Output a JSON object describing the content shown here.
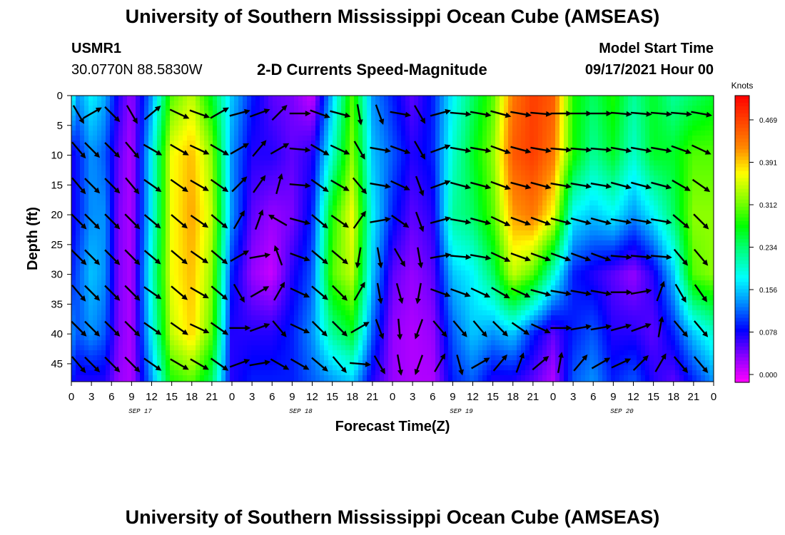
{
  "header": {
    "title": "University of Southern Mississippi Ocean Cube (AMSEAS)",
    "station_id": "USMR1",
    "coordinates": "30.0770N  88.5830W",
    "model_start_label": "Model Start Time",
    "model_start_value": "09/17/2021 Hour 00"
  },
  "footer": {
    "title": "University of Southern Mississippi Ocean Cube (AMSEAS)"
  },
  "chart_data": {
    "type": "heatmap",
    "title": "2-D Currents Speed-Magnitude",
    "xlabel": "Forecast Time(Z)",
    "ylabel": "Depth (ft)",
    "x_tick_labels": [
      "0",
      "3",
      "6",
      "9",
      "12",
      "15",
      "18",
      "21",
      "0",
      "3",
      "6",
      "9",
      "12",
      "15",
      "18",
      "21",
      "0",
      "3",
      "6",
      "9",
      "12",
      "15",
      "18",
      "21",
      "0",
      "3",
      "6",
      "9",
      "12",
      "15",
      "18",
      "21",
      "0"
    ],
    "date_labels": [
      "SEP 17",
      "SEP 18",
      "SEP 19",
      "SEP 20"
    ],
    "xlim_hours": [
      0,
      96
    ],
    "y_ticks": [
      0,
      5,
      10,
      15,
      20,
      25,
      30,
      35,
      40,
      45
    ],
    "ylim": [
      0,
      48
    ],
    "y_inverted": true,
    "colorbar": {
      "unit": "Knots",
      "ticks": [
        "0.469",
        "0.391",
        "0.312",
        "0.234",
        "0.156",
        "0.078",
        "0.000"
      ],
      "range": [
        0.0,
        0.5
      ],
      "colors": [
        "#ff00ff",
        "#8800ff",
        "#0000ff",
        "#0088ff",
        "#00ffff",
        "#00ff88",
        "#00ff00",
        "#88ff00",
        "#ffff00",
        "#ff8800",
        "#ff4400",
        "#ff0000"
      ]
    },
    "speed_columns": {
      "hours": [
        0,
        1,
        3,
        5,
        7,
        9,
        12,
        15,
        18,
        21,
        24,
        27,
        30,
        33,
        36,
        39,
        42,
        45,
        48,
        51,
        54,
        57,
        60,
        63,
        66,
        69,
        72,
        75,
        78,
        81,
        84,
        87,
        90,
        93,
        96
      ],
      "depth_rows": [
        0,
        10,
        20,
        30,
        40,
        48
      ],
      "values": [
        [
          0.2,
          0.08,
          0.08,
          0.1,
          0.14,
          0.1
        ],
        [
          0.14,
          0.1,
          0.1,
          0.12,
          0.12,
          0.08
        ],
        [
          0.18,
          0.14,
          0.14,
          0.16,
          0.14,
          0.08
        ],
        [
          0.15,
          0.12,
          0.14,
          0.14,
          0.12,
          0.08
        ],
        [
          0.08,
          0.06,
          0.05,
          0.05,
          0.05,
          0.04
        ],
        [
          0.04,
          0.03,
          0.03,
          0.03,
          0.03,
          0.03
        ],
        [
          0.14,
          0.18,
          0.18,
          0.2,
          0.18,
          0.14
        ],
        [
          0.3,
          0.36,
          0.36,
          0.36,
          0.34,
          0.28
        ],
        [
          0.34,
          0.39,
          0.4,
          0.39,
          0.38,
          0.3
        ],
        [
          0.26,
          0.32,
          0.34,
          0.32,
          0.3,
          0.24
        ],
        [
          0.16,
          0.14,
          0.14,
          0.1,
          0.08,
          0.08
        ],
        [
          0.1,
          0.08,
          0.06,
          0.04,
          0.08,
          0.1
        ],
        [
          0.06,
          0.08,
          0.04,
          0.02,
          0.08,
          0.1
        ],
        [
          0.05,
          0.06,
          0.05,
          0.08,
          0.1,
          0.1
        ],
        [
          0.02,
          0.08,
          0.1,
          0.12,
          0.14,
          0.12
        ],
        [
          0.16,
          0.2,
          0.28,
          0.3,
          0.22,
          0.14
        ],
        [
          0.3,
          0.32,
          0.36,
          0.34,
          0.26,
          0.16
        ],
        [
          0.14,
          0.16,
          0.18,
          0.16,
          0.12,
          0.08
        ],
        [
          0.1,
          0.12,
          0.1,
          0.06,
          0.04,
          0.04
        ],
        [
          0.06,
          0.08,
          0.06,
          0.04,
          0.03,
          0.03
        ],
        [
          0.1,
          0.1,
          0.08,
          0.06,
          0.04,
          0.03
        ],
        [
          0.18,
          0.2,
          0.22,
          0.16,
          0.12,
          0.1
        ],
        [
          0.24,
          0.26,
          0.24,
          0.18,
          0.16,
          0.12
        ],
        [
          0.3,
          0.32,
          0.3,
          0.24,
          0.14,
          0.08
        ],
        [
          0.42,
          0.44,
          0.4,
          0.34,
          0.16,
          0.08
        ],
        [
          0.46,
          0.46,
          0.42,
          0.3,
          0.1,
          0.06
        ],
        [
          0.44,
          0.42,
          0.36,
          0.2,
          0.06,
          0.03
        ],
        [
          0.28,
          0.28,
          0.18,
          0.1,
          0.1,
          0.12
        ],
        [
          0.24,
          0.22,
          0.16,
          0.08,
          0.12,
          0.14
        ],
        [
          0.28,
          0.26,
          0.18,
          0.06,
          0.08,
          0.1
        ],
        [
          0.22,
          0.2,
          0.14,
          0.04,
          0.08,
          0.12
        ],
        [
          0.26,
          0.26,
          0.18,
          0.08,
          0.06,
          0.08
        ],
        [
          0.22,
          0.26,
          0.24,
          0.16,
          0.1,
          0.06
        ],
        [
          0.24,
          0.3,
          0.32,
          0.3,
          0.16,
          0.1
        ],
        [
          0.26,
          0.3,
          0.32,
          0.32,
          0.2,
          0.14
        ]
      ]
    },
    "vector_columns": {
      "hours": [
        1,
        3,
        6,
        9,
        12,
        16,
        19,
        22,
        25,
        28,
        31,
        34,
        37,
        40,
        43,
        46,
        49,
        52,
        55,
        58,
        61,
        64,
        67,
        70,
        73,
        76,
        79,
        82,
        85,
        88,
        91,
        94
      ],
      "depths_ft": [
        3,
        9,
        15,
        21,
        27,
        33,
        39,
        45
      ],
      "directions_deg": [
        [
          150,
          140,
          140,
          135,
          135,
          140,
          135,
          140
        ],
        [
          60,
          135,
          135,
          135,
          135,
          135,
          135,
          135
        ],
        [
          135,
          135,
          135,
          135,
          135,
          135,
          135,
          135
        ],
        [
          150,
          140,
          140,
          135,
          135,
          135,
          135,
          135
        ],
        [
          50,
          120,
          125,
          130,
          130,
          125,
          125,
          125
        ],
        [
          115,
          120,
          125,
          130,
          130,
          130,
          125,
          120
        ],
        [
          110,
          115,
          120,
          125,
          125,
          120,
          115,
          120
        ],
        [
          60,
          120,
          125,
          130,
          130,
          130,
          125,
          125
        ],
        [
          75,
          60,
          45,
          30,
          60,
          150,
          90,
          70
        ],
        [
          70,
          40,
          35,
          20,
          80,
          60,
          70,
          80
        ],
        [
          45,
          60,
          15,
          300,
          340,
          30,
          140,
          120
        ],
        [
          90,
          95,
          95,
          105,
          110,
          115,
          115,
          120
        ],
        [
          110,
          120,
          125,
          130,
          130,
          130,
          135,
          130
        ],
        [
          105,
          115,
          120,
          125,
          130,
          135,
          135,
          140
        ],
        [
          170,
          150,
          140,
          35,
          190,
          30,
          60,
          95
        ],
        [
          160,
          100,
          100,
          80,
          170,
          170,
          160,
          150
        ],
        [
          100,
          110,
          115,
          125,
          150,
          165,
          175,
          170
        ],
        [
          150,
          150,
          160,
          160,
          170,
          190,
          200,
          200
        ],
        [
          75,
          70,
          70,
          75,
          80,
          110,
          140,
          30
        ],
        [
          95,
          100,
          105,
          100,
          95,
          110,
          140,
          165
        ],
        [
          100,
          100,
          105,
          105,
          100,
          115,
          140,
          60
        ],
        [
          105,
          110,
          110,
          115,
          115,
          120,
          135,
          40
        ],
        [
          100,
          105,
          105,
          110,
          110,
          115,
          125,
          20
        ],
        [
          95,
          100,
          105,
          110,
          110,
          105,
          115,
          50
        ],
        [
          90,
          95,
          100,
          105,
          110,
          100,
          90,
          10
        ],
        [
          90,
          95,
          100,
          105,
          110,
          100,
          80,
          40
        ],
        [
          90,
          95,
          100,
          105,
          110,
          100,
          80,
          60
        ],
        [
          95,
          100,
          105,
          100,
          95,
          90,
          75,
          65
        ],
        [
          95,
          100,
          105,
          100,
          95,
          80,
          70,
          45
        ],
        [
          95,
          100,
          105,
          100,
          95,
          20,
          10,
          30
        ],
        [
          95,
          110,
          120,
          130,
          140,
          150,
          140,
          140
        ],
        [
          100,
          115,
          125,
          135,
          140,
          145,
          140,
          140
        ]
      ]
    }
  }
}
